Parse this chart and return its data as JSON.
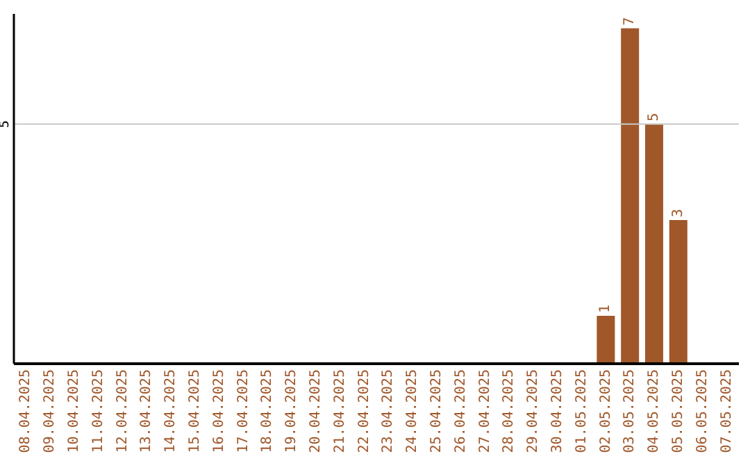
{
  "chart_data": {
    "type": "bar",
    "categories": [
      "08.04.2025",
      "09.04.2025",
      "10.04.2025",
      "11.04.2025",
      "12.04.2025",
      "13.04.2025",
      "14.04.2025",
      "15.04.2025",
      "16.04.2025",
      "17.04.2025",
      "18.04.2025",
      "19.04.2025",
      "20.04.2025",
      "21.04.2025",
      "22.04.2025",
      "23.04.2025",
      "24.04.2025",
      "25.04.2025",
      "26.04.2025",
      "27.04.2025",
      "28.04.2025",
      "29.04.2025",
      "30.04.2025",
      "01.05.2025",
      "02.05.2025",
      "03.05.2025",
      "04.05.2025",
      "05.05.2025",
      "06.05.2025",
      "07.05.2025"
    ],
    "values": [
      null,
      null,
      null,
      null,
      null,
      null,
      null,
      null,
      null,
      null,
      null,
      null,
      null,
      null,
      null,
      null,
      null,
      null,
      null,
      null,
      null,
      null,
      null,
      null,
      1,
      7,
      5,
      3,
      null,
      null
    ],
    "data_labels": true,
    "color": "#a0572a",
    "ylim": [
      0,
      7.3
    ],
    "yticks": [
      5
    ],
    "grid": "y"
  }
}
